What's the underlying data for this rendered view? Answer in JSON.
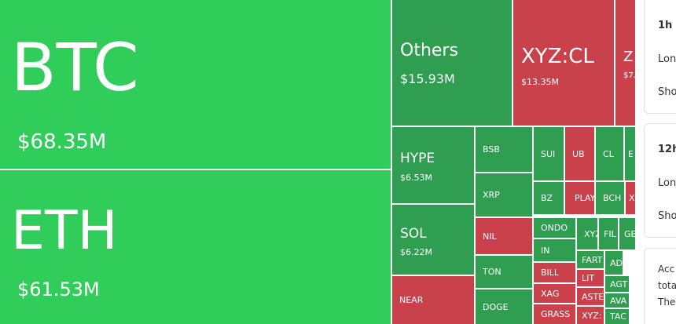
{
  "tiles": [
    {
      "label": "BTC",
      "value": "$68.35M"
    },
    {
      "label": "ETH",
      "value": "$61.53M"
    },
    {
      "label": "Others",
      "value": "$15.93M"
    },
    {
      "label": "XYZ:CL",
      "value": "$13.35M"
    },
    {
      "label": "Z",
      "value": "$7."
    },
    {
      "label": "HYPE",
      "value": "$6.53M"
    },
    {
      "label": "SOL",
      "value": "$6.22M"
    },
    {
      "label": "NEAR"
    },
    {
      "label": "BSB"
    },
    {
      "label": "XRP"
    },
    {
      "label": "NIL"
    },
    {
      "label": "TON"
    },
    {
      "label": "DOGE"
    },
    {
      "label": "SUI"
    },
    {
      "label": "BZ"
    },
    {
      "label": "UB"
    },
    {
      "label": "PLAY"
    },
    {
      "label": "CL"
    },
    {
      "label": "BCH"
    },
    {
      "label": "ONDO"
    },
    {
      "label": "IN"
    },
    {
      "label": "BILL"
    },
    {
      "label": "XAG"
    },
    {
      "label": "GRASS"
    },
    {
      "label": "XYZ"
    },
    {
      "label": "FIL"
    },
    {
      "label": "GE"
    },
    {
      "label": "FART"
    },
    {
      "label": "LIT"
    },
    {
      "label": "ASTE"
    },
    {
      "label": "XYZ:"
    },
    {
      "label": "AD"
    },
    {
      "label": "AGT"
    },
    {
      "label": "AVA"
    },
    {
      "label": "TAC"
    },
    {
      "label": "E"
    },
    {
      "label": "X"
    }
  ],
  "panel": [
    {
      "title": "1h",
      "rows": [
        "Lon",
        "Sho"
      ]
    },
    {
      "title": "12h",
      "rows": [
        "Lon",
        "Sho"
      ]
    }
  ],
  "note": [
    "Acc",
    "tota",
    "The"
  ]
}
